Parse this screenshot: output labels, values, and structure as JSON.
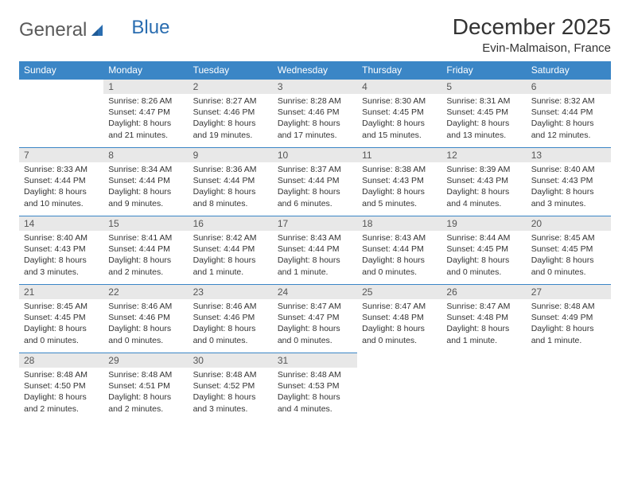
{
  "logo": {
    "word1": "General",
    "word2": "Blue"
  },
  "title": "December 2025",
  "location": "Evin-Malmaison, France",
  "colors": {
    "header_bg": "#3b86c6",
    "header_text": "#ffffff",
    "daynum_bg": "#e8e8e8",
    "daynum_text": "#555555",
    "border": "#3b86c6",
    "body_text": "#333333",
    "logo_gray": "#5a5a5a",
    "logo_blue": "#2a6db0"
  },
  "day_headers": [
    "Sunday",
    "Monday",
    "Tuesday",
    "Wednesday",
    "Thursday",
    "Friday",
    "Saturday"
  ],
  "weeks": [
    [
      null,
      {
        "n": "1",
        "sr": "Sunrise: 8:26 AM",
        "ss": "Sunset: 4:47 PM",
        "d1": "Daylight: 8 hours",
        "d2": "and 21 minutes."
      },
      {
        "n": "2",
        "sr": "Sunrise: 8:27 AM",
        "ss": "Sunset: 4:46 PM",
        "d1": "Daylight: 8 hours",
        "d2": "and 19 minutes."
      },
      {
        "n": "3",
        "sr": "Sunrise: 8:28 AM",
        "ss": "Sunset: 4:46 PM",
        "d1": "Daylight: 8 hours",
        "d2": "and 17 minutes."
      },
      {
        "n": "4",
        "sr": "Sunrise: 8:30 AM",
        "ss": "Sunset: 4:45 PM",
        "d1": "Daylight: 8 hours",
        "d2": "and 15 minutes."
      },
      {
        "n": "5",
        "sr": "Sunrise: 8:31 AM",
        "ss": "Sunset: 4:45 PM",
        "d1": "Daylight: 8 hours",
        "d2": "and 13 minutes."
      },
      {
        "n": "6",
        "sr": "Sunrise: 8:32 AM",
        "ss": "Sunset: 4:44 PM",
        "d1": "Daylight: 8 hours",
        "d2": "and 12 minutes."
      }
    ],
    [
      {
        "n": "7",
        "sr": "Sunrise: 8:33 AM",
        "ss": "Sunset: 4:44 PM",
        "d1": "Daylight: 8 hours",
        "d2": "and 10 minutes."
      },
      {
        "n": "8",
        "sr": "Sunrise: 8:34 AM",
        "ss": "Sunset: 4:44 PM",
        "d1": "Daylight: 8 hours",
        "d2": "and 9 minutes."
      },
      {
        "n": "9",
        "sr": "Sunrise: 8:36 AM",
        "ss": "Sunset: 4:44 PM",
        "d1": "Daylight: 8 hours",
        "d2": "and 8 minutes."
      },
      {
        "n": "10",
        "sr": "Sunrise: 8:37 AM",
        "ss": "Sunset: 4:44 PM",
        "d1": "Daylight: 8 hours",
        "d2": "and 6 minutes."
      },
      {
        "n": "11",
        "sr": "Sunrise: 8:38 AM",
        "ss": "Sunset: 4:43 PM",
        "d1": "Daylight: 8 hours",
        "d2": "and 5 minutes."
      },
      {
        "n": "12",
        "sr": "Sunrise: 8:39 AM",
        "ss": "Sunset: 4:43 PM",
        "d1": "Daylight: 8 hours",
        "d2": "and 4 minutes."
      },
      {
        "n": "13",
        "sr": "Sunrise: 8:40 AM",
        "ss": "Sunset: 4:43 PM",
        "d1": "Daylight: 8 hours",
        "d2": "and 3 minutes."
      }
    ],
    [
      {
        "n": "14",
        "sr": "Sunrise: 8:40 AM",
        "ss": "Sunset: 4:43 PM",
        "d1": "Daylight: 8 hours",
        "d2": "and 3 minutes."
      },
      {
        "n": "15",
        "sr": "Sunrise: 8:41 AM",
        "ss": "Sunset: 4:44 PM",
        "d1": "Daylight: 8 hours",
        "d2": "and 2 minutes."
      },
      {
        "n": "16",
        "sr": "Sunrise: 8:42 AM",
        "ss": "Sunset: 4:44 PM",
        "d1": "Daylight: 8 hours",
        "d2": "and 1 minute."
      },
      {
        "n": "17",
        "sr": "Sunrise: 8:43 AM",
        "ss": "Sunset: 4:44 PM",
        "d1": "Daylight: 8 hours",
        "d2": "and 1 minute."
      },
      {
        "n": "18",
        "sr": "Sunrise: 8:43 AM",
        "ss": "Sunset: 4:44 PM",
        "d1": "Daylight: 8 hours",
        "d2": "and 0 minutes."
      },
      {
        "n": "19",
        "sr": "Sunrise: 8:44 AM",
        "ss": "Sunset: 4:45 PM",
        "d1": "Daylight: 8 hours",
        "d2": "and 0 minutes."
      },
      {
        "n": "20",
        "sr": "Sunrise: 8:45 AM",
        "ss": "Sunset: 4:45 PM",
        "d1": "Daylight: 8 hours",
        "d2": "and 0 minutes."
      }
    ],
    [
      {
        "n": "21",
        "sr": "Sunrise: 8:45 AM",
        "ss": "Sunset: 4:45 PM",
        "d1": "Daylight: 8 hours",
        "d2": "and 0 minutes."
      },
      {
        "n": "22",
        "sr": "Sunrise: 8:46 AM",
        "ss": "Sunset: 4:46 PM",
        "d1": "Daylight: 8 hours",
        "d2": "and 0 minutes."
      },
      {
        "n": "23",
        "sr": "Sunrise: 8:46 AM",
        "ss": "Sunset: 4:46 PM",
        "d1": "Daylight: 8 hours",
        "d2": "and 0 minutes."
      },
      {
        "n": "24",
        "sr": "Sunrise: 8:47 AM",
        "ss": "Sunset: 4:47 PM",
        "d1": "Daylight: 8 hours",
        "d2": "and 0 minutes."
      },
      {
        "n": "25",
        "sr": "Sunrise: 8:47 AM",
        "ss": "Sunset: 4:48 PM",
        "d1": "Daylight: 8 hours",
        "d2": "and 0 minutes."
      },
      {
        "n": "26",
        "sr": "Sunrise: 8:47 AM",
        "ss": "Sunset: 4:48 PM",
        "d1": "Daylight: 8 hours",
        "d2": "and 1 minute."
      },
      {
        "n": "27",
        "sr": "Sunrise: 8:48 AM",
        "ss": "Sunset: 4:49 PM",
        "d1": "Daylight: 8 hours",
        "d2": "and 1 minute."
      }
    ],
    [
      {
        "n": "28",
        "sr": "Sunrise: 8:48 AM",
        "ss": "Sunset: 4:50 PM",
        "d1": "Daylight: 8 hours",
        "d2": "and 2 minutes."
      },
      {
        "n": "29",
        "sr": "Sunrise: 8:48 AM",
        "ss": "Sunset: 4:51 PM",
        "d1": "Daylight: 8 hours",
        "d2": "and 2 minutes."
      },
      {
        "n": "30",
        "sr": "Sunrise: 8:48 AM",
        "ss": "Sunset: 4:52 PM",
        "d1": "Daylight: 8 hours",
        "d2": "and 3 minutes."
      },
      {
        "n": "31",
        "sr": "Sunrise: 8:48 AM",
        "ss": "Sunset: 4:53 PM",
        "d1": "Daylight: 8 hours",
        "d2": "and 4 minutes."
      },
      null,
      null,
      null
    ]
  ]
}
